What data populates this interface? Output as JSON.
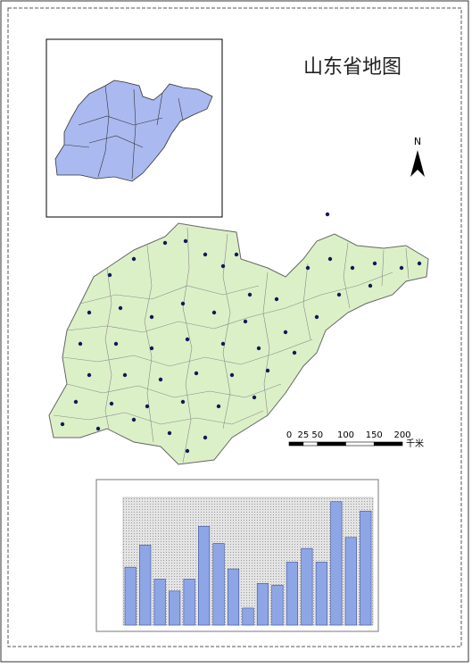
{
  "header": {
    "title": "山东省地图"
  },
  "north_arrow": {
    "label": "N"
  },
  "scale_bar": {
    "ticks": [
      0,
      25,
      50,
      100,
      150,
      200
    ],
    "unit": "千米"
  },
  "chart_data": {
    "type": "bar",
    "values": [
      68,
      94,
      54,
      40,
      54,
      116,
      96,
      66,
      20,
      49,
      47,
      74,
      90,
      74,
      145,
      103,
      134
    ],
    "color": "#8fa6e6",
    "ylim": [
      0,
      150
    ]
  }
}
